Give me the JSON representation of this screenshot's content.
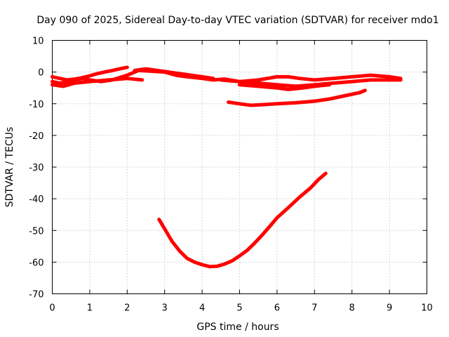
{
  "chart_data": {
    "type": "line",
    "title": "Day 090 of 2025, Sidereal Day-to-day VTEC variation (SDTVAR) for receiver mdo1",
    "xlabel": "GPS time / hours",
    "ylabel": "SDTVAR / TECUs",
    "xlim": [
      0,
      10
    ],
    "ylim": [
      -70,
      10
    ],
    "xticks": [
      0,
      1,
      2,
      3,
      4,
      5,
      6,
      7,
      8,
      9,
      10
    ],
    "yticks": [
      10,
      0,
      -10,
      -20,
      -30,
      -40,
      -50,
      -60,
      -70
    ],
    "grid": true,
    "color": "#ff0000",
    "series": [
      {
        "x": [
          0.0,
          0.2,
          0.4,
          0.6,
          0.8,
          1.0,
          1.2,
          1.4,
          1.6,
          1.8,
          2.0
        ],
        "values": [
          -1.5,
          -2.0,
          -2.5,
          -2.2,
          -1.8,
          -1.2,
          -0.5,
          0.0,
          0.5,
          1.0,
          1.5
        ]
      },
      {
        "x": [
          0.0,
          0.3,
          0.6,
          1.0,
          1.5,
          2.0,
          2.4
        ],
        "values": [
          -4.0,
          -4.5,
          -3.5,
          -3.0,
          -2.5,
          -2.0,
          -2.5
        ]
      },
      {
        "x": [
          0.0,
          0.2,
          0.5,
          0.8,
          1.0,
          1.3,
          1.6,
          2.0,
          2.3,
          2.6,
          3.0,
          3.3,
          3.6,
          4.0,
          4.3,
          4.6,
          5.0,
          5.5,
          6.0,
          6.5,
          7.0,
          7.5,
          8.0,
          8.5,
          9.0,
          9.3
        ],
        "values": [
          -3.0,
          -3.5,
          -3.0,
          -2.0,
          -2.5,
          -3.0,
          -2.5,
          -1.0,
          0.5,
          0.3,
          0.0,
          -1.0,
          -1.5,
          -2.0,
          -2.5,
          -2.2,
          -3.0,
          -3.5,
          -4.0,
          -4.5,
          -4.0,
          -3.5,
          -3.0,
          -2.5,
          -2.5,
          -2.5
        ]
      },
      {
        "x": [
          2.2,
          2.5,
          2.8,
          3.1,
          3.4,
          3.7,
          4.0,
          4.3
        ],
        "values": [
          0.5,
          1.0,
          0.5,
          0.0,
          -0.5,
          -1.0,
          -1.5,
          -2.0
        ]
      },
      {
        "x": [
          4.5,
          5.0,
          5.5,
          6.0,
          6.3,
          6.6,
          7.0,
          7.5,
          8.0,
          8.5,
          9.0,
          9.3
        ],
        "values": [
          -2.5,
          -3.0,
          -2.5,
          -1.5,
          -1.5,
          -2.0,
          -2.5,
          -2.0,
          -1.5,
          -1.0,
          -1.5,
          -2.0
        ]
      },
      {
        "x": [
          5.0,
          5.5,
          6.0,
          6.3,
          6.7,
          7.0,
          7.4
        ],
        "values": [
          -4.0,
          -4.5,
          -5.0,
          -5.5,
          -5.0,
          -4.5,
          -4.0
        ]
      },
      {
        "x": [
          4.7,
          5.0,
          5.3,
          5.6,
          6.0,
          6.5,
          7.0,
          7.4,
          7.8,
          8.2,
          8.35
        ],
        "values": [
          -9.5,
          -10.0,
          -10.5,
          -10.3,
          -10.0,
          -9.7,
          -9.2,
          -8.5,
          -7.5,
          -6.5,
          -5.8
        ]
      },
      {
        "x": [
          2.85,
          3.0,
          3.2,
          3.4,
          3.6,
          3.8,
          4.0,
          4.2,
          4.4,
          4.6,
          4.8,
          5.0,
          5.2,
          5.4,
          5.6,
          5.8,
          6.0,
          6.3,
          6.6,
          6.9,
          7.1,
          7.3
        ],
        "values": [
          -46.5,
          -49.5,
          -53.5,
          -56.5,
          -58.8,
          -60.0,
          -60.8,
          -61.4,
          -61.3,
          -60.6,
          -59.6,
          -58.0,
          -56.3,
          -54.0,
          -51.5,
          -48.8,
          -46.0,
          -42.8,
          -39.5,
          -36.5,
          -34.0,
          -32.0
        ]
      }
    ]
  }
}
